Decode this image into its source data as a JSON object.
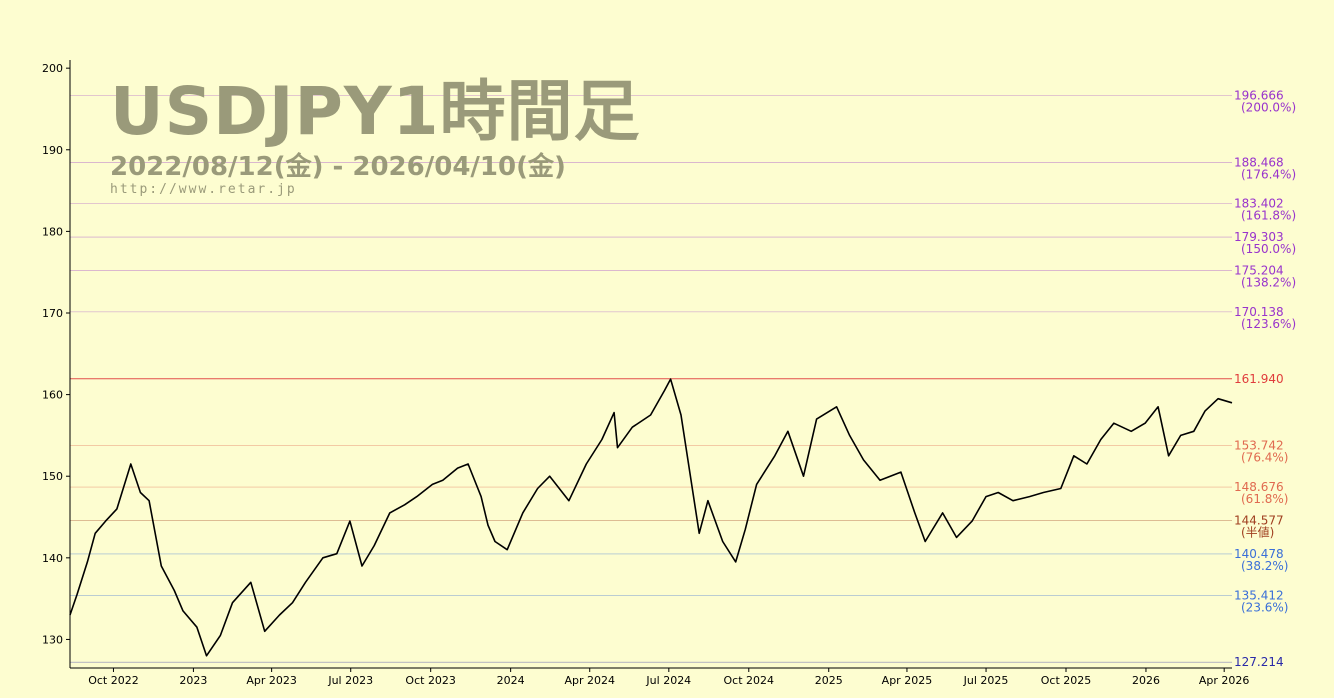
{
  "header": {
    "title": "USDJPY1時間足",
    "period": "2022/08/12(金) - 2026/04/10(金)",
    "url": "http://www.retar.jp"
  },
  "colors": {
    "background": "#fdfdd0",
    "price_line": "#000000",
    "high_line": "#e03c3c",
    "upper_fib": "#9933cc",
    "mid_fib": "#e06a50",
    "half_fib": "#a04020",
    "lower_fib": "#3a6fd8",
    "low_fib": "#2a2aa8",
    "watermark": "#9a9a7a"
  },
  "chart_data": {
    "type": "line",
    "title": "USDJPY1時間足",
    "subtitle": "2022/08/12(金) - 2026/04/10(金)",
    "xlabel": "",
    "ylabel": "",
    "x_range": [
      "2022-08-12",
      "2026-04-10"
    ],
    "ylim": [
      126.5,
      201
    ],
    "y_ticks": [
      130,
      140,
      150,
      160,
      170,
      180,
      190,
      200
    ],
    "x_ticks": [
      {
        "date": "2022-10-01",
        "label": "Oct 2022"
      },
      {
        "date": "2023-01-01",
        "label": "2023"
      },
      {
        "date": "2023-04-01",
        "label": "Apr 2023"
      },
      {
        "date": "2023-07-01",
        "label": "Jul 2023"
      },
      {
        "date": "2023-10-01",
        "label": "Oct 2023"
      },
      {
        "date": "2024-01-01",
        "label": "2024"
      },
      {
        "date": "2024-04-01",
        "label": "Apr 2024"
      },
      {
        "date": "2024-07-01",
        "label": "Jul 2024"
      },
      {
        "date": "2024-10-01",
        "label": "Oct 2024"
      },
      {
        "date": "2025-01-01",
        "label": "2025"
      },
      {
        "date": "2025-04-01",
        "label": "Apr 2025"
      },
      {
        "date": "2025-07-01",
        "label": "Jul 2025"
      },
      {
        "date": "2025-10-01",
        "label": "Oct 2025"
      },
      {
        "date": "2026-01-01",
        "label": "2026"
      },
      {
        "date": "2026-04-01",
        "label": "Apr 2026"
      }
    ],
    "series": [
      {
        "x": [
          "2022-08-12",
          "2022-08-20",
          "2022-09-01",
          "2022-09-10",
          "2022-09-22",
          "2022-10-05",
          "2022-10-21",
          "2022-11-01",
          "2022-11-11",
          "2022-11-25",
          "2022-12-10",
          "2022-12-20",
          "2023-01-05",
          "2023-01-16",
          "2023-02-01",
          "2023-02-15",
          "2023-03-08",
          "2023-03-24",
          "2023-04-10",
          "2023-04-25",
          "2023-05-10",
          "2023-05-30",
          "2023-06-15",
          "2023-06-30",
          "2023-07-14",
          "2023-07-28",
          "2023-08-15",
          "2023-09-01",
          "2023-09-15",
          "2023-10-03",
          "2023-10-15",
          "2023-11-01",
          "2023-11-13",
          "2023-11-28",
          "2023-12-06",
          "2023-12-14",
          "2023-12-28",
          "2024-01-15",
          "2024-02-01",
          "2024-02-15",
          "2024-03-08",
          "2024-03-28",
          "2024-04-15",
          "2024-04-29",
          "2024-05-03",
          "2024-05-20",
          "2024-06-10",
          "2024-06-26",
          "2024-07-03",
          "2024-07-15",
          "2024-08-05",
          "2024-08-15",
          "2024-09-01",
          "2024-09-16",
          "2024-09-27",
          "2024-10-10",
          "2024-10-31",
          "2024-11-15",
          "2024-12-03",
          "2024-12-18",
          "2025-01-10",
          "2025-01-25",
          "2025-02-10",
          "2025-03-01",
          "2025-03-25",
          "2025-04-10",
          "2025-04-22",
          "2025-05-12",
          "2025-05-28",
          "2025-06-15",
          "2025-07-01",
          "2025-07-15",
          "2025-08-01",
          "2025-08-20",
          "2025-09-05",
          "2025-09-25",
          "2025-10-10",
          "2025-10-25",
          "2025-11-10",
          "2025-11-25",
          "2025-12-15",
          "2025-12-31",
          "2026-01-15",
          "2026-01-27",
          "2026-02-10",
          "2026-02-25",
          "2026-03-10",
          "2026-03-25",
          "2026-04-10"
        ],
        "y": [
          133.0,
          135.5,
          139.5,
          143.0,
          144.5,
          146.0,
          151.5,
          148.0,
          147.0,
          139.0,
          136.0,
          133.5,
          131.5,
          128.0,
          130.5,
          134.5,
          137.0,
          131.0,
          133.0,
          134.5,
          137.0,
          140.0,
          140.5,
          144.5,
          139.0,
          141.5,
          145.5,
          146.5,
          147.5,
          149.0,
          149.5,
          151.0,
          151.5,
          147.5,
          144.0,
          142.0,
          141.0,
          145.5,
          148.5,
          150.0,
          147.0,
          151.5,
          154.5,
          157.8,
          153.5,
          156.0,
          157.5,
          160.5,
          161.9,
          157.5,
          143.0,
          147.0,
          142.0,
          139.5,
          143.5,
          149.0,
          152.5,
          155.5,
          150.0,
          157.0,
          158.5,
          155.0,
          152.0,
          149.5,
          150.5,
          145.5,
          142.0,
          145.5,
          142.5,
          144.5,
          147.5,
          148.0,
          147.0,
          147.5,
          148.0,
          148.5,
          152.5,
          151.5,
          154.5,
          156.5,
          155.5,
          156.5,
          158.5,
          152.5,
          155.0,
          155.5,
          158.0,
          159.5,
          159.0
        ]
      }
    ],
    "reference_levels": [
      {
        "value": 196.666,
        "label": "196.666",
        "ratio": "(200.0%)",
        "group": "upper_fib"
      },
      {
        "value": 188.468,
        "label": "188.468",
        "ratio": "(176.4%)",
        "group": "upper_fib"
      },
      {
        "value": 183.402,
        "label": "183.402",
        "ratio": "(161.8%)",
        "group": "upper_fib"
      },
      {
        "value": 179.303,
        "label": "179.303",
        "ratio": "(150.0%)",
        "group": "upper_fib"
      },
      {
        "value": 175.204,
        "label": "175.204",
        "ratio": "(138.2%)",
        "group": "upper_fib"
      },
      {
        "value": 170.138,
        "label": "170.138",
        "ratio": "(123.6%)",
        "group": "upper_fib"
      },
      {
        "value": 161.94,
        "label": "161.940",
        "ratio": "",
        "group": "high_line"
      },
      {
        "value": 153.742,
        "label": "153.742",
        "ratio": "(76.4%)",
        "group": "mid_fib"
      },
      {
        "value": 148.676,
        "label": "148.676",
        "ratio": "(61.8%)",
        "group": "mid_fib"
      },
      {
        "value": 144.577,
        "label": "144.577",
        "ratio": "(半値)",
        "group": "half_fib"
      },
      {
        "value": 140.478,
        "label": "140.478",
        "ratio": "(38.2%)",
        "group": "lower_fib"
      },
      {
        "value": 135.412,
        "label": "135.412",
        "ratio": "(23.6%)",
        "group": "lower_fib"
      },
      {
        "value": 127.214,
        "label": "127.214",
        "ratio": "",
        "group": "low_fib"
      }
    ],
    "grid": false,
    "legend": "none"
  }
}
